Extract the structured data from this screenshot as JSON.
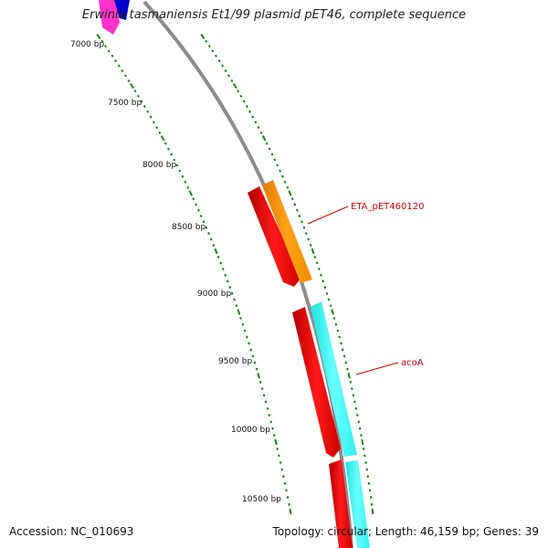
{
  "title": "Erwinia tasmaniensis Et1/99 plasmid pET46, complete sequence",
  "footer": {
    "accession_text": "Accession: NC_010693",
    "summary_text": "Topology: circular; Length: 46,159 bp; Genes: 39"
  },
  "scale": {
    "labels": [
      "7000 bp",
      "7500 bp",
      "8000 bp",
      "8500 bp",
      "9000 bp",
      "9500 bp",
      "10000 bp",
      "10500 bp"
    ]
  },
  "genes": [
    {
      "name": "ETA_pET460120",
      "color": "#cc0000"
    },
    {
      "name": "acoA",
      "color": "#cc0000"
    }
  ],
  "colors": {
    "backbone": "#8c8c8c",
    "cds": "#ff0000",
    "orange_feature": "#ff9900",
    "cyan_feature": "#33ffff",
    "tick": "#1a7f1a",
    "magenta_feature": "#ff33cc",
    "blue_feature": "#0000cc"
  }
}
